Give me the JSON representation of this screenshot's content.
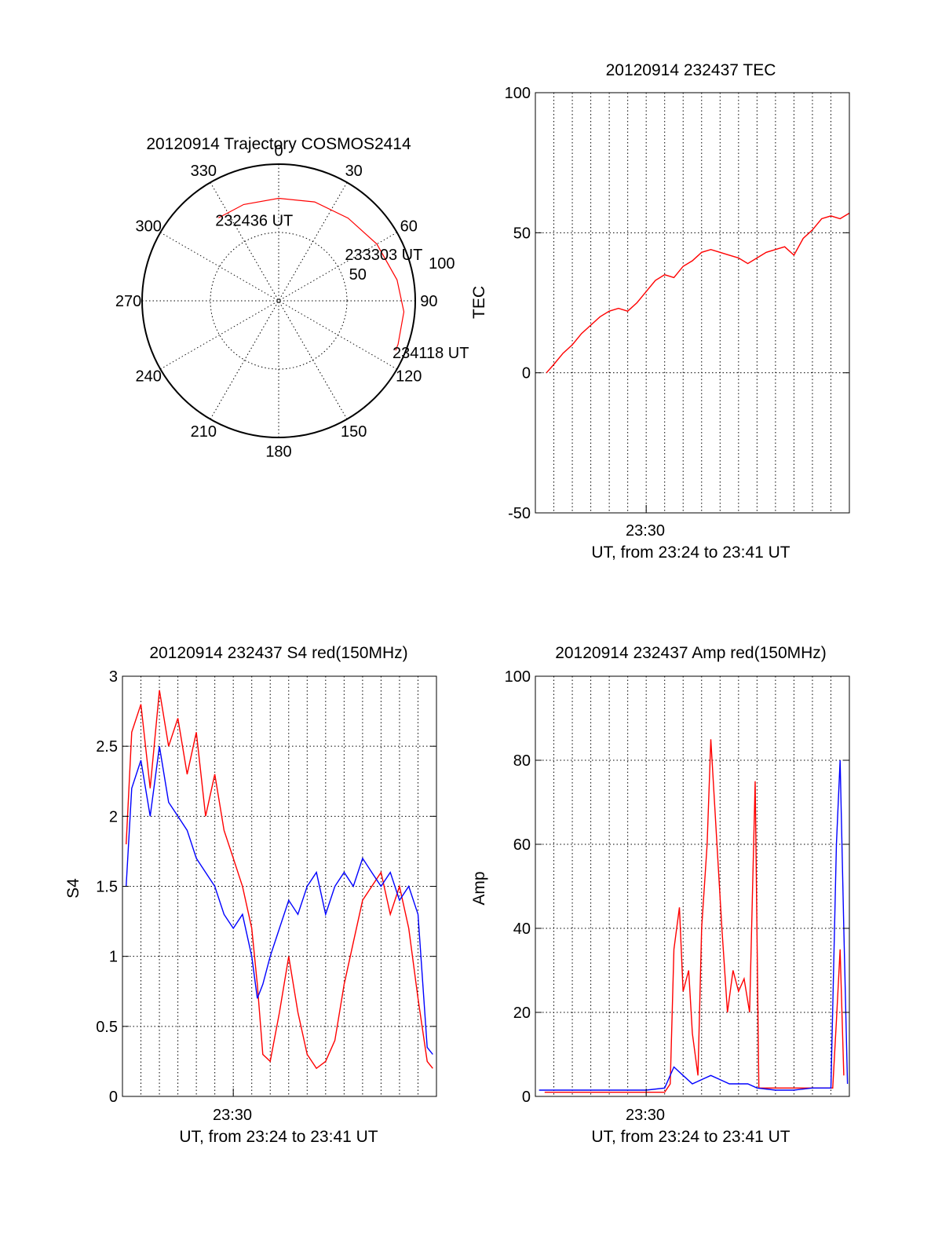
{
  "colors": {
    "red": "#ff0000",
    "blue": "#0000ff",
    "axis": "#000000",
    "background": "#ffffff"
  },
  "chart_data": [
    {
      "id": "trajectory",
      "type": "polar",
      "title": "20120914 Trajectory COSMOS2414",
      "azimuth_labels": [
        "0",
        "30",
        "60",
        "90",
        "120",
        "150",
        "180",
        "210",
        "240",
        "270",
        "300",
        "330"
      ],
      "azimuth_values": [
        0,
        30,
        60,
        90,
        120,
        150,
        180,
        210,
        240,
        270,
        300,
        330
      ],
      "radial_labels": [
        "50",
        "100"
      ],
      "radial_values": [
        50,
        100
      ],
      "radial_max": 100,
      "track": {
        "color": "red",
        "points": [
          [
            -36,
            75
          ],
          [
            -20,
            75
          ],
          [
            0,
            75
          ],
          [
            20,
            77
          ],
          [
            40,
            79
          ],
          [
            60,
            83
          ],
          [
            80,
            88
          ],
          [
            95,
            92
          ],
          [
            110,
            93
          ],
          [
            113,
            93
          ]
        ]
      },
      "annotations": [
        {
          "text": "232436 UT",
          "az": -36,
          "r": 75
        },
        {
          "text": "233303 UT",
          "az": 55,
          "r": 62
        },
        {
          "text": "234118 UT",
          "az": 113,
          "r": 93
        }
      ]
    },
    {
      "id": "tec",
      "type": "line",
      "title": "20120914 232437 TEC",
      "ylabel": "TEC",
      "xlabel": "UT, from 23:24 to 23:41 UT",
      "x_tick_label": "23:30",
      "x_tick_value": 6,
      "xlim": [
        0,
        17
      ],
      "ylim": [
        -50,
        100
      ],
      "y_ticks": [
        -50,
        0,
        50,
        100
      ],
      "y_tick_labels": [
        "-50",
        "0",
        "50",
        "100"
      ],
      "y_grid": [
        0,
        50
      ],
      "x_grid_step": 1,
      "series": [
        {
          "color": "red",
          "x": [
            0.6,
            1.0,
            1.5,
            2.0,
            2.5,
            3.0,
            3.5,
            4.0,
            4.5,
            5.0,
            5.5,
            6.0,
            6.5,
            7.0,
            7.5,
            8.0,
            8.5,
            9.0,
            9.5,
            10.0,
            10.5,
            11.0,
            11.5,
            12.0,
            12.5,
            13.0,
            13.5,
            14.0,
            14.5,
            15.0,
            15.5,
            16.0,
            16.5,
            17.0
          ],
          "y": [
            0,
            3,
            7,
            10,
            14,
            17,
            20,
            22,
            23,
            22,
            25,
            29,
            33,
            35,
            34,
            38,
            40,
            43,
            44,
            43,
            42,
            41,
            39,
            41,
            43,
            44,
            45,
            42,
            48,
            51,
            55,
            56,
            55,
            57
          ]
        }
      ]
    },
    {
      "id": "s4",
      "type": "line",
      "title": "20120914 232437 S4 red(150MHz)",
      "ylabel": "S4",
      "xlabel": "UT, from 23:24 to 23:41 UT",
      "x_tick_label": "23:30",
      "x_tick_value": 6,
      "xlim": [
        0,
        17
      ],
      "ylim": [
        0,
        3
      ],
      "y_ticks": [
        0,
        0.5,
        1,
        1.5,
        2,
        2.5,
        3
      ],
      "y_tick_labels": [
        "0",
        "0.5",
        "1",
        "1.5",
        "2",
        "2.5",
        "3"
      ],
      "y_grid": [
        0.5,
        1,
        1.5,
        2,
        2.5
      ],
      "x_grid_step": 1,
      "series": [
        {
          "color": "red",
          "x": [
            0.2,
            0.5,
            1.0,
            1.5,
            2.0,
            2.5,
            3.0,
            3.5,
            4.0,
            4.5,
            5.0,
            5.5,
            6.0,
            6.5,
            7.0,
            7.3,
            7.6,
            8.0,
            8.5,
            9.0,
            9.5,
            10.0,
            10.5,
            11.0,
            11.5,
            12.0,
            12.5,
            13.0,
            13.5,
            14.0,
            14.5,
            15.0,
            15.5,
            16.0,
            16.5,
            16.8
          ],
          "y": [
            1.8,
            2.6,
            2.8,
            2.2,
            2.9,
            2.5,
            2.7,
            2.3,
            2.6,
            2.0,
            2.3,
            1.9,
            1.7,
            1.5,
            1.2,
            0.8,
            0.3,
            0.25,
            0.6,
            1.0,
            0.6,
            0.3,
            0.2,
            0.25,
            0.4,
            0.8,
            1.1,
            1.4,
            1.5,
            1.6,
            1.3,
            1.5,
            1.2,
            0.7,
            0.25,
            0.2
          ]
        },
        {
          "color": "blue",
          "x": [
            0.2,
            0.5,
            1.0,
            1.5,
            2.0,
            2.5,
            3.0,
            3.5,
            4.0,
            4.5,
            5.0,
            5.5,
            6.0,
            6.5,
            7.0,
            7.3,
            7.6,
            8.0,
            8.5,
            9.0,
            9.5,
            10.0,
            10.5,
            11.0,
            11.5,
            12.0,
            12.5,
            13.0,
            13.5,
            14.0,
            14.5,
            15.0,
            15.5,
            16.0,
            16.5,
            16.8
          ],
          "y": [
            1.5,
            2.2,
            2.4,
            2.0,
            2.5,
            2.1,
            2.0,
            1.9,
            1.7,
            1.6,
            1.5,
            1.3,
            1.2,
            1.3,
            1.0,
            0.7,
            0.8,
            1.0,
            1.2,
            1.4,
            1.3,
            1.5,
            1.6,
            1.3,
            1.5,
            1.6,
            1.5,
            1.7,
            1.6,
            1.5,
            1.6,
            1.4,
            1.5,
            1.3,
            0.35,
            0.3
          ]
        }
      ]
    },
    {
      "id": "amp",
      "type": "line",
      "title": "20120914 232437 Amp red(150MHz)",
      "ylabel": "Amp",
      "xlabel": "UT, from 23:24 to 23:41 UT",
      "x_tick_label": "23:30",
      "x_tick_value": 6,
      "xlim": [
        0,
        17
      ],
      "ylim": [
        0,
        100
      ],
      "y_ticks": [
        0,
        20,
        40,
        60,
        80,
        100
      ],
      "y_tick_labels": [
        "0",
        "20",
        "40",
        "60",
        "80",
        "100"
      ],
      "y_grid": [
        20,
        40,
        60,
        80
      ],
      "x_grid_step": 1,
      "series": [
        {
          "color": "red",
          "x": [
            0.5,
            7.0,
            7.3,
            7.5,
            7.8,
            8.0,
            8.3,
            8.5,
            8.8,
            9.0,
            9.3,
            9.5,
            9.7,
            9.9,
            10.1,
            10.4,
            10.7,
            11.0,
            11.3,
            11.6,
            11.9,
            12.1,
            15.0,
            16.1,
            16.3,
            16.5,
            16.7
          ],
          "y": [
            1,
            1,
            3,
            35,
            45,
            25,
            30,
            15,
            5,
            40,
            60,
            85,
            70,
            55,
            40,
            20,
            30,
            25,
            28,
            20,
            75,
            2,
            2,
            2,
            18,
            35,
            5
          ]
        },
        {
          "color": "blue",
          "x": [
            0.2,
            2.0,
            4.0,
            6.0,
            7.0,
            7.5,
            8.0,
            8.5,
            9.0,
            9.5,
            10.0,
            10.5,
            11.0,
            11.5,
            12.0,
            13.0,
            14.0,
            15.0,
            16.0,
            16.3,
            16.5,
            16.7,
            16.9
          ],
          "y": [
            1.5,
            1.5,
            1.5,
            1.5,
            2,
            7,
            5,
            3,
            4,
            5,
            4,
            3,
            3,
            3,
            2,
            1.5,
            1.5,
            2,
            2,
            60,
            80,
            40,
            3
          ]
        }
      ]
    }
  ]
}
